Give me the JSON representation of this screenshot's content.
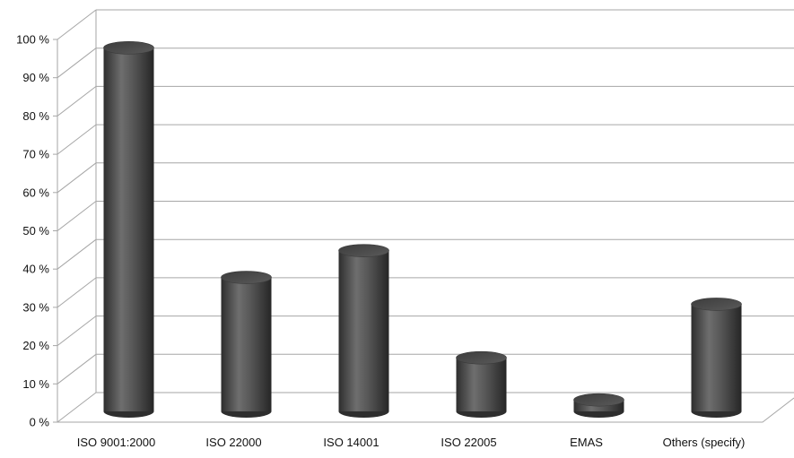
{
  "chart_data": {
    "type": "bar",
    "style": "3d-cylinder",
    "title": "",
    "xlabel": "",
    "ylabel": "",
    "categories": [
      "ISO 9001:2000",
      "ISO 22000",
      "ISO 14001",
      "ISO 22005",
      "EMAS",
      "Others (specify)"
    ],
    "values": [
      95,
      35,
      42,
      14,
      3,
      28
    ],
    "ylim": [
      0,
      100
    ],
    "yticks": [
      "0 %",
      "10 %",
      "20 %",
      "30 %",
      "40 %",
      "50 %",
      "60 %",
      "70 %",
      "80 %",
      "90 %",
      "100 %"
    ],
    "grid": true,
    "legend": "none",
    "colors": {
      "bar": "#555555",
      "bar_dark": "#2e2e2e",
      "bar_light": "#8a8a8a",
      "grid": "#a6a6a6",
      "text": "#111111"
    }
  }
}
